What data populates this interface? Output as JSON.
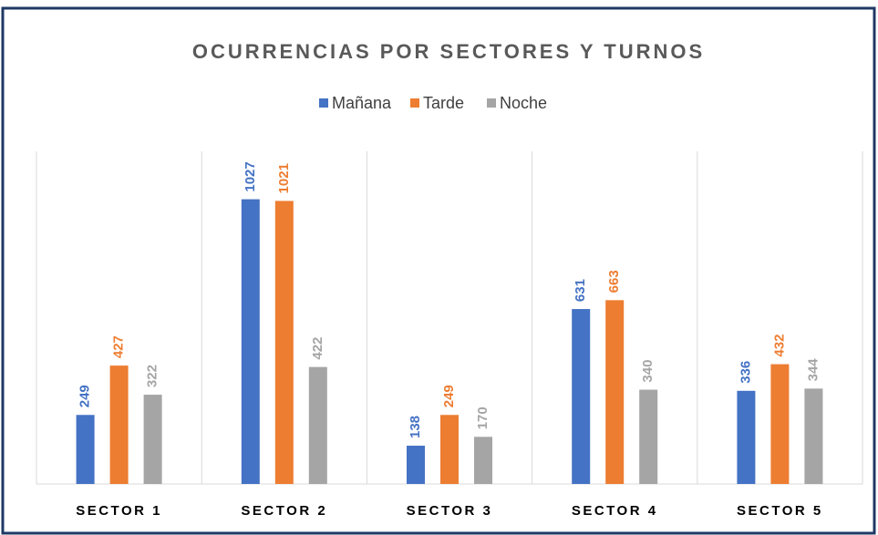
{
  "chart_data": {
    "type": "bar",
    "title": "OCURRENCIAS POR SECTORES Y TURNOS",
    "categories": [
      "SECTOR 1",
      "SECTOR 2",
      "SECTOR 3",
      "SECTOR 4",
      "SECTOR 5"
    ],
    "series": [
      {
        "name": "Mañana",
        "color": "#4472c4",
        "values": [
          249,
          1027,
          138,
          631,
          336
        ]
      },
      {
        "name": "Tarde",
        "color": "#ed7d31",
        "values": [
          427,
          1021,
          249,
          663,
          432
        ]
      },
      {
        "name": "Noche",
        "color": "#a5a5a5",
        "values": [
          322,
          422,
          170,
          340,
          344
        ]
      }
    ],
    "ylim": [
      0,
      1200
    ],
    "legend": "top"
  }
}
